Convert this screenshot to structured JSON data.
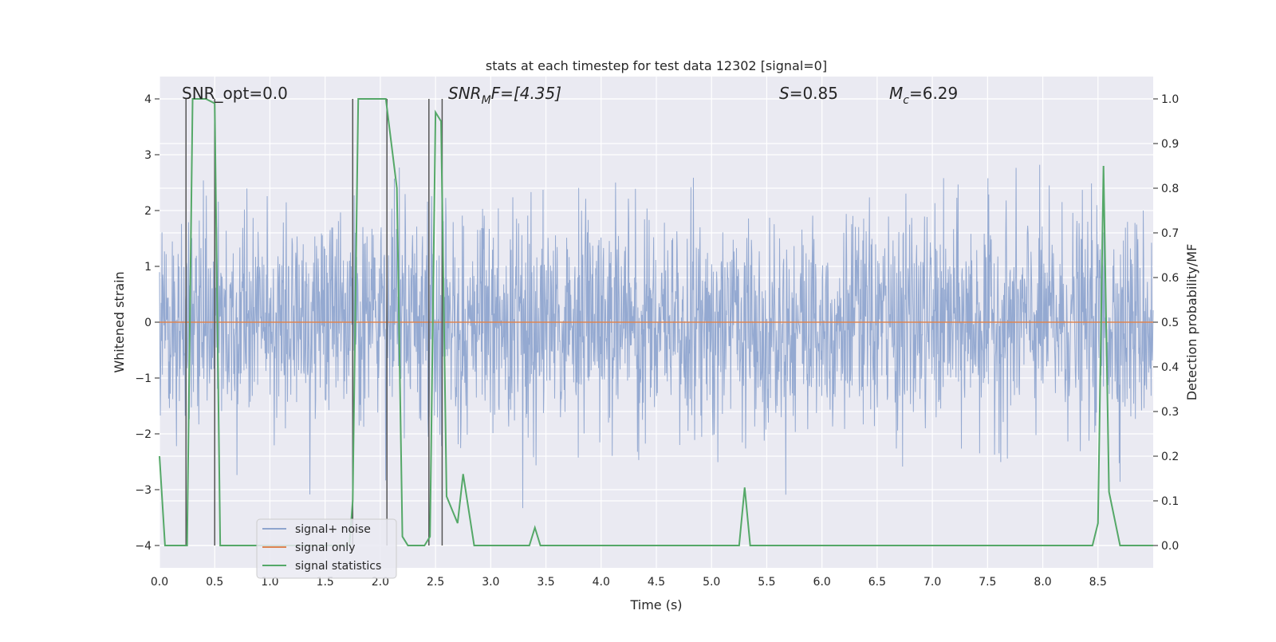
{
  "chart_data": {
    "type": "line",
    "title": "stats at each timestep for test data 12302 [signal=0]",
    "xlabel": "Time (s)",
    "ylabel_left": "Whitened strain",
    "ylabel_right": "Detection probability/MF",
    "xlim": [
      0.0,
      9.0
    ],
    "ylim_left": [
      -4.4,
      4.4
    ],
    "ylim_right": [
      -0.05,
      1.05
    ],
    "x_ticks": [
      "0.0",
      "0.5",
      "1.0",
      "1.5",
      "2.0",
      "2.5",
      "3.0",
      "3.5",
      "4.0",
      "4.5",
      "5.0",
      "5.5",
      "6.0",
      "6.5",
      "7.0",
      "7.5",
      "8.0",
      "8.5"
    ],
    "y_ticks_left": [
      "−4",
      "−3",
      "−2",
      "−1",
      "0",
      "1",
      "2",
      "3",
      "4"
    ],
    "y_ticks_right": [
      "0.0",
      "0.1",
      "0.2",
      "0.3",
      "0.4",
      "0.5",
      "0.6",
      "0.7",
      "0.8",
      "0.9",
      "1.0"
    ],
    "grid": true,
    "legend_position": "lower-left",
    "annotations": {
      "snr_opt": "SNR_opt=0.0",
      "snr_mf_name": "SNR",
      "snr_mf_sub": "M",
      "snr_mf_rest": "F=[4.35]",
      "s_name": "S",
      "s_rest": "=0.85",
      "mc_name": "M",
      "mc_sub": "c",
      "mc_rest": "=6.29"
    },
    "series": [
      {
        "name": "signal+ noise",
        "color": "#8fa5cf",
        "axis": "left",
        "style": "dense noise, roughly within ±2.5, peaks to ±3.7"
      },
      {
        "name": "signal only",
        "color": "#dd8452",
        "axis": "left",
        "x": [
          0.0,
          9.0
        ],
        "y": [
          0.0,
          0.0
        ]
      },
      {
        "name": "signal statistics",
        "color": "#55a868",
        "axis": "right",
        "x": [
          0.0,
          0.02,
          0.05,
          0.1,
          0.2,
          0.25,
          0.3,
          0.42,
          0.5,
          0.55,
          0.6,
          0.7,
          0.8,
          0.9,
          1.0,
          1.2,
          1.4,
          1.6,
          1.72,
          1.75,
          1.8,
          1.85,
          2.05,
          2.15,
          2.2,
          2.25,
          2.35,
          2.4,
          2.45,
          2.5,
          2.55,
          2.6,
          2.65,
          2.7,
          2.75,
          2.8,
          2.85,
          2.9,
          3.0,
          3.2,
          3.35,
          3.4,
          3.45,
          3.5,
          4.0,
          4.5,
          5.0,
          5.25,
          5.3,
          5.35,
          5.5,
          6.0,
          6.5,
          6.8,
          7.0,
          7.5,
          8.0,
          8.2,
          8.25,
          8.3,
          8.4,
          8.45,
          8.5,
          8.55,
          8.6,
          8.7,
          8.8,
          8.9,
          9.0
        ],
        "y": [
          0.2,
          0.12,
          0.0,
          0.0,
          0.0,
          0.0,
          1.0,
          1.0,
          0.99,
          0.0,
          0.0,
          0.0,
          0.0,
          0.0,
          0.0,
          0.0,
          0.0,
          0.0,
          0.0,
          0.1,
          1.0,
          1.0,
          1.0,
          0.8,
          0.02,
          0.0,
          0.0,
          0.0,
          0.02,
          0.97,
          0.95,
          0.11,
          0.08,
          0.05,
          0.16,
          0.08,
          0.0,
          0.0,
          0.0,
          0.0,
          0.0,
          0.04,
          0.0,
          0.0,
          0.0,
          0.0,
          0.0,
          0.0,
          0.13,
          0.0,
          0.0,
          0.0,
          0.0,
          0.0,
          0.0,
          0.0,
          0.0,
          0.0,
          0.0,
          0.0,
          0.0,
          0.0,
          0.05,
          0.85,
          0.12,
          0.0,
          0.0,
          0.0,
          0.0
        ]
      }
    ],
    "vertical_lines_x": [
      0.24,
      0.5,
      1.75,
      2.06,
      2.44,
      2.56
    ]
  }
}
